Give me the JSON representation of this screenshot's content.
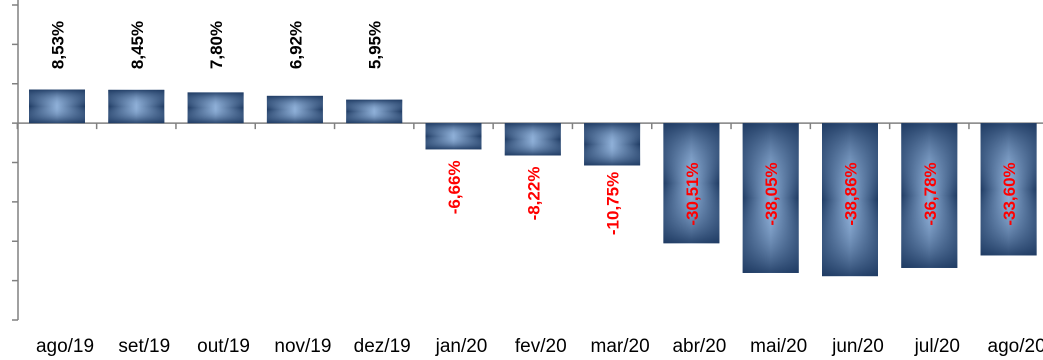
{
  "chart_data": {
    "type": "bar",
    "categories": [
      "ago/19",
      "set/19",
      "out/19",
      "nov/19",
      "dez/19",
      "jan/20",
      "fev/20",
      "mar/20",
      "abr/20",
      "mai/20",
      "jun/20",
      "jul/20",
      "ago/20"
    ],
    "values": [
      8.53,
      8.45,
      7.8,
      6.92,
      5.95,
      -6.66,
      -8.22,
      -10.75,
      -30.51,
      -38.05,
      -38.86,
      -36.78,
      -33.6
    ],
    "data_labels": [
      "8,53%",
      "8,45%",
      "7,80%",
      "6,92%",
      "5,95%",
      "-6,66%",
      "-8,22%",
      "-10,75%",
      "-30,51%",
      "-38,05%",
      "-38,86%",
      "-36,78%",
      "-33,60%"
    ],
    "ylim": [
      -50,
      30
    ],
    "grid": false,
    "colors": {
      "bar_edge": "#1f3b63",
      "bar_center": "#8fb0d8",
      "positive_label": "#000000",
      "negative_label": "#ff0000",
      "axis": "#808080"
    }
  }
}
